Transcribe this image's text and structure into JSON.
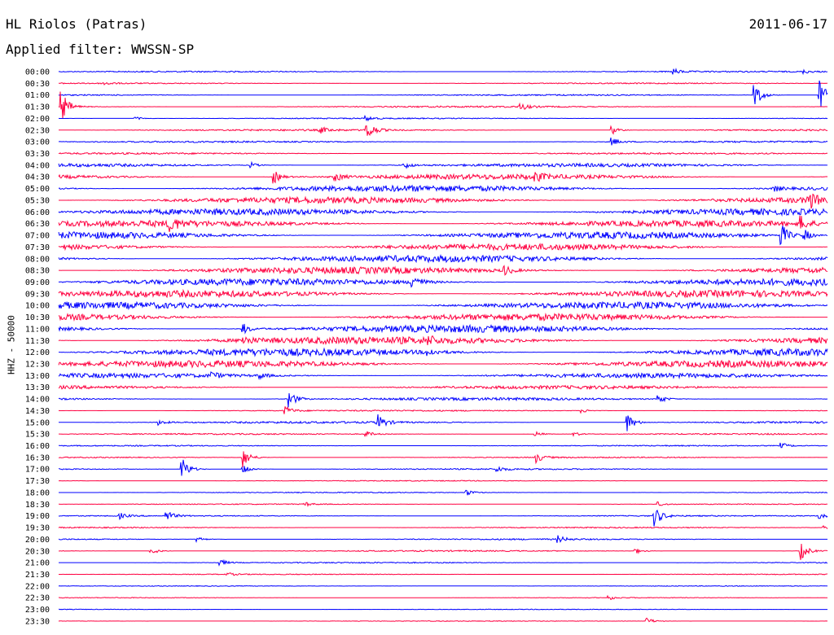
{
  "header": {
    "station": "HL Riolos (Patras)",
    "date": "2011-06-17",
    "filter_text": "Applied filter: WWSSN-SP"
  },
  "chart_data": {
    "type": "line",
    "title": "HL Riolos (Patras)",
    "subtitle": "Applied filter: WWSSN-SP",
    "ylabel": "HHZ - 50000",
    "xlabel": "",
    "grid": false,
    "colors": [
      "#0000ff",
      "#ff0040"
    ],
    "rows": [
      {
        "time": "00:00",
        "noise": 0.12,
        "events": [
          {
            "t": 0.8,
            "amp": 0.5
          },
          {
            "t": 0.97,
            "amp": 0.3
          }
        ]
      },
      {
        "time": "00:30",
        "noise": 0.1,
        "events": [
          {
            "t": 0.06,
            "amp": 0.3
          }
        ]
      },
      {
        "time": "01:00",
        "noise": 0.12,
        "events": [
          {
            "t": 0.905,
            "amp": 2.2
          },
          {
            "t": 0.99,
            "amp": 2.6
          }
        ]
      },
      {
        "time": "01:30",
        "noise": 0.14,
        "events": [
          {
            "t": 0.004,
            "amp": 2.6
          },
          {
            "t": 0.6,
            "amp": 0.7
          }
        ]
      },
      {
        "time": "02:00",
        "noise": 0.1,
        "events": [
          {
            "t": 0.1,
            "amp": 0.3
          },
          {
            "t": 0.4,
            "amp": 0.4
          }
        ]
      },
      {
        "time": "02:30",
        "noise": 0.15,
        "events": [
          {
            "t": 0.34,
            "amp": 0.6
          },
          {
            "t": 0.4,
            "amp": 2.0
          },
          {
            "t": 0.72,
            "amp": 0.8
          }
        ]
      },
      {
        "time": "03:00",
        "noise": 0.14,
        "events": [
          {
            "t": 0.72,
            "amp": 0.7
          }
        ]
      },
      {
        "time": "03:30",
        "noise": 0.15,
        "events": []
      },
      {
        "time": "04:00",
        "noise": 0.3,
        "events": [
          {
            "t": 0.25,
            "amp": 0.5
          },
          {
            "t": 0.45,
            "amp": 0.6
          }
        ]
      },
      {
        "time": "04:30",
        "noise": 0.45,
        "events": [
          {
            "t": 0.28,
            "amp": 1.2
          },
          {
            "t": 0.36,
            "amp": 0.8
          },
          {
            "t": 0.62,
            "amp": 0.7
          }
        ]
      },
      {
        "time": "05:00",
        "noise": 0.55,
        "events": [
          {
            "t": 0.93,
            "amp": 0.6
          }
        ]
      },
      {
        "time": "05:30",
        "noise": 0.55,
        "events": [
          {
            "t": 0.975,
            "amp": 1.6
          }
        ]
      },
      {
        "time": "06:00",
        "noise": 0.55,
        "events": []
      },
      {
        "time": "06:30",
        "noise": 0.55,
        "events": [
          {
            "t": 0.145,
            "amp": 1.2
          },
          {
            "t": 0.965,
            "amp": 1.2
          }
        ]
      },
      {
        "time": "07:00",
        "noise": 0.6,
        "events": [
          {
            "t": 0.94,
            "amp": 2.0
          },
          {
            "t": 0.97,
            "amp": 1.0
          }
        ]
      },
      {
        "time": "07:30",
        "noise": 0.55,
        "events": []
      },
      {
        "time": "08:00",
        "noise": 0.6,
        "events": []
      },
      {
        "time": "08:30",
        "noise": 0.6,
        "events": [
          {
            "t": 0.58,
            "amp": 0.8
          }
        ]
      },
      {
        "time": "09:00",
        "noise": 0.6,
        "events": [
          {
            "t": 0.46,
            "amp": 1.6
          }
        ]
      },
      {
        "time": "09:30",
        "noise": 0.6,
        "events": []
      },
      {
        "time": "10:00",
        "noise": 0.6,
        "events": []
      },
      {
        "time": "10:30",
        "noise": 0.6,
        "events": []
      },
      {
        "time": "11:00",
        "noise": 0.65,
        "events": [
          {
            "t": 0.24,
            "amp": 1.0
          }
        ]
      },
      {
        "time": "11:30",
        "noise": 0.65,
        "events": [
          {
            "t": 0.24,
            "amp": 0.8
          },
          {
            "t": 0.48,
            "amp": 0.6
          }
        ]
      },
      {
        "time": "12:00",
        "noise": 0.65,
        "events": [
          {
            "t": 0.48,
            "amp": 0.6
          }
        ]
      },
      {
        "time": "12:30",
        "noise": 0.6,
        "events": []
      },
      {
        "time": "13:00",
        "noise": 0.4,
        "events": [
          {
            "t": 0.2,
            "amp": 0.5
          },
          {
            "t": 0.26,
            "amp": 0.6
          }
        ]
      },
      {
        "time": "13:30",
        "noise": 0.3,
        "events": []
      },
      {
        "time": "14:00",
        "noise": 0.25,
        "events": [
          {
            "t": 0.3,
            "amp": 1.6
          },
          {
            "t": 0.78,
            "amp": 0.8
          }
        ]
      },
      {
        "time": "14:30",
        "noise": 0.12,
        "events": [
          {
            "t": 0.295,
            "amp": 0.8
          },
          {
            "t": 0.68,
            "amp": 0.4
          }
        ]
      },
      {
        "time": "15:00",
        "noise": 0.18,
        "events": [
          {
            "t": 0.13,
            "amp": 0.5
          },
          {
            "t": 0.415,
            "amp": 1.4
          },
          {
            "t": 0.74,
            "amp": 1.6
          }
        ]
      },
      {
        "time": "15:30",
        "noise": 0.12,
        "events": [
          {
            "t": 0.4,
            "amp": 0.5
          },
          {
            "t": 0.62,
            "amp": 0.5
          },
          {
            "t": 0.67,
            "amp": 0.4
          }
        ]
      },
      {
        "time": "16:00",
        "noise": 0.1,
        "events": [
          {
            "t": 0.94,
            "amp": 0.5
          }
        ]
      },
      {
        "time": "16:30",
        "noise": 0.1,
        "events": [
          {
            "t": 0.24,
            "amp": 1.8
          },
          {
            "t": 0.62,
            "amp": 1.0
          }
        ]
      },
      {
        "time": "17:00",
        "noise": 0.12,
        "events": [
          {
            "t": 0.16,
            "amp": 2.2
          },
          {
            "t": 0.24,
            "amp": 1.0
          },
          {
            "t": 0.57,
            "amp": 0.5
          }
        ]
      },
      {
        "time": "17:30",
        "noise": 0.08,
        "events": []
      },
      {
        "time": "18:00",
        "noise": 0.08,
        "events": [
          {
            "t": 0.53,
            "amp": 0.6
          }
        ]
      },
      {
        "time": "18:30",
        "noise": 0.08,
        "events": [
          {
            "t": 0.32,
            "amp": 0.4
          },
          {
            "t": 0.78,
            "amp": 0.4
          }
        ]
      },
      {
        "time": "19:00",
        "noise": 0.1,
        "events": [
          {
            "t": 0.08,
            "amp": 0.5
          },
          {
            "t": 0.14,
            "amp": 1.0
          },
          {
            "t": 0.775,
            "amp": 1.8
          },
          {
            "t": 0.99,
            "amp": 0.5
          }
        ]
      },
      {
        "time": "19:30",
        "noise": 0.1,
        "events": [
          {
            "t": 0.995,
            "amp": 0.6
          }
        ]
      },
      {
        "time": "20:00",
        "noise": 0.12,
        "events": [
          {
            "t": 0.18,
            "amp": 0.5
          },
          {
            "t": 0.65,
            "amp": 0.6
          }
        ]
      },
      {
        "time": "20:30",
        "noise": 0.12,
        "events": [
          {
            "t": 0.12,
            "amp": 0.7
          },
          {
            "t": 0.75,
            "amp": 0.5
          },
          {
            "t": 0.965,
            "amp": 1.6
          }
        ]
      },
      {
        "time": "21:00",
        "noise": 0.1,
        "events": [
          {
            "t": 0.21,
            "amp": 0.6
          }
        ]
      },
      {
        "time": "21:30",
        "noise": 0.08,
        "events": [
          {
            "t": 0.22,
            "amp": 0.3
          }
        ]
      },
      {
        "time": "22:00",
        "noise": 0.06,
        "events": []
      },
      {
        "time": "22:30",
        "noise": 0.06,
        "events": [
          {
            "t": 0.715,
            "amp": 0.4
          }
        ]
      },
      {
        "time": "23:00",
        "noise": 0.06,
        "events": []
      },
      {
        "time": "23:30",
        "noise": 0.06,
        "events": [
          {
            "t": 0.765,
            "amp": 0.6
          }
        ]
      }
    ]
  }
}
